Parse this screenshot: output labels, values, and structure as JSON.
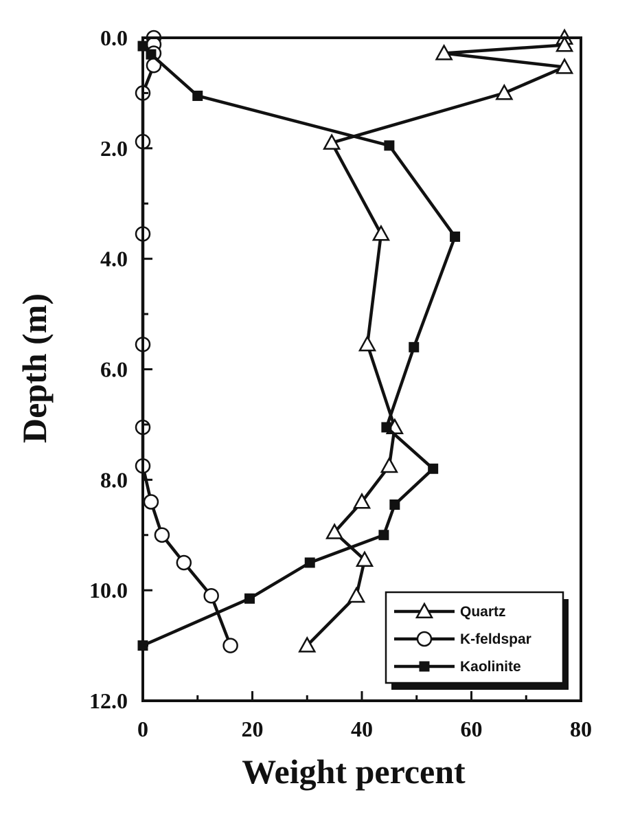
{
  "chart_data": {
    "type": "line",
    "title": "",
    "xlabel": "Weight percent",
    "ylabel": "Depth (m)",
    "xlim": [
      0,
      80
    ],
    "ylim": [
      0,
      12
    ],
    "y_inverted": true,
    "xticks": [
      "0",
      "20",
      "40",
      "60",
      "80"
    ],
    "yticks": [
      "0.0",
      "2.0",
      "4.0",
      "6.0",
      "8.0",
      "10.0",
      "12.0"
    ],
    "legend_position": "lower-right",
    "grid": false,
    "series": [
      {
        "name": "Quartz",
        "marker": "open-triangle",
        "points": [
          {
            "x": 77,
            "y": 0.0
          },
          {
            "x": 77,
            "y": 0.13
          },
          {
            "x": 55,
            "y": 0.28
          },
          {
            "x": 77,
            "y": 0.53
          },
          {
            "x": 66,
            "y": 1.0
          },
          {
            "x": 34.5,
            "y": 1.9
          },
          {
            "x": 43.5,
            "y": 3.55
          },
          {
            "x": 41,
            "y": 5.55
          },
          {
            "x": 46,
            "y": 7.05
          },
          {
            "x": 45,
            "y": 7.75
          },
          {
            "x": 40,
            "y": 8.4
          },
          {
            "x": 35,
            "y": 8.95
          },
          {
            "x": 40.5,
            "y": 9.45
          },
          {
            "x": 39,
            "y": 10.1
          },
          {
            "x": 30,
            "y": 11.0
          }
        ]
      },
      {
        "name": "K-feldspar",
        "marker": "open-circle",
        "points": [
          {
            "x": 2,
            "y": 0.0
          },
          {
            "x": 2,
            "y": 0.12
          },
          {
            "x": 2,
            "y": 0.28
          },
          {
            "x": 2,
            "y": 0.5
          },
          {
            "x": 0,
            "y": 1.0
          },
          {
            "x": 0,
            "y": 1.88
          },
          {
            "x": 0,
            "y": 3.55
          },
          {
            "x": 0,
            "y": 5.55
          },
          {
            "x": 0,
            "y": 7.05
          },
          {
            "x": 0,
            "y": 7.75
          },
          {
            "x": 1.5,
            "y": 8.4
          },
          {
            "x": 3.5,
            "y": 9.0
          },
          {
            "x": 7.5,
            "y": 9.5
          },
          {
            "x": 12.5,
            "y": 10.1
          },
          {
            "x": 16,
            "y": 11.0
          }
        ]
      },
      {
        "name": "Kaolinite",
        "marker": "filled-square",
        "points": [
          {
            "x": 0,
            "y": 0.15
          },
          {
            "x": 1.5,
            "y": 0.3
          },
          {
            "x": 10,
            "y": 1.05
          },
          {
            "x": 45,
            "y": 1.95
          },
          {
            "x": 57,
            "y": 3.6
          },
          {
            "x": 49.5,
            "y": 5.6
          },
          {
            "x": 44.5,
            "y": 7.05
          },
          {
            "x": 53,
            "y": 7.8
          },
          {
            "x": 46,
            "y": 8.45
          },
          {
            "x": 44,
            "y": 9.0
          },
          {
            "x": 30.5,
            "y": 9.5
          },
          {
            "x": 19.5,
            "y": 10.15
          },
          {
            "x": 0,
            "y": 11.0
          }
        ]
      }
    ]
  }
}
